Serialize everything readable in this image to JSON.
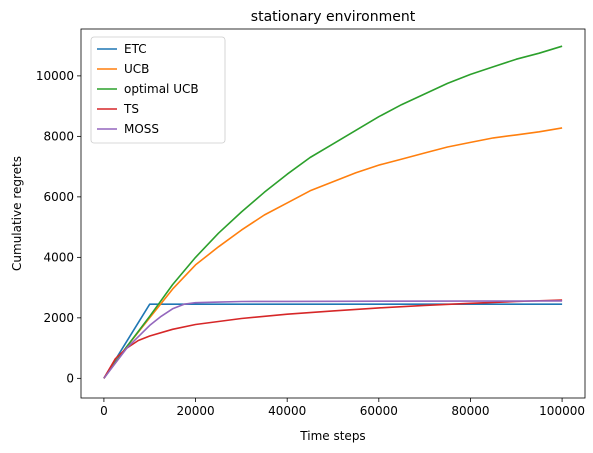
{
  "chart_data": {
    "type": "line",
    "title": "stationary environment",
    "xlabel": "Time steps",
    "ylabel": "Cumulative regrets",
    "xlim": [
      -5000,
      105000
    ],
    "ylim": [
      -650,
      11550
    ],
    "xticks": [
      0,
      20000,
      40000,
      60000,
      80000,
      100000
    ],
    "xtick_labels": [
      "0",
      "20000",
      "40000",
      "60000",
      "80000",
      "100000"
    ],
    "yticks": [
      0,
      2000,
      4000,
      6000,
      8000,
      10000
    ],
    "ytick_labels": [
      "0",
      "2000",
      "4000",
      "6000",
      "8000",
      "10000"
    ],
    "grid": false,
    "legend_position": "top-left",
    "series": [
      {
        "name": "ETC",
        "color": "#1f77b4",
        "x": [
          0,
          10000,
          20000,
          40000,
          60000,
          80000,
          100000
        ],
        "values": [
          0,
          2450,
          2450,
          2450,
          2450,
          2450,
          2450
        ]
      },
      {
        "name": "UCB",
        "color": "#ff7f0e",
        "x": [
          0,
          5000,
          10000,
          15000,
          20000,
          25000,
          30000,
          35000,
          40000,
          45000,
          50000,
          55000,
          60000,
          65000,
          70000,
          75000,
          80000,
          85000,
          90000,
          95000,
          100000
        ],
        "values": [
          0,
          1050,
          2000,
          2950,
          3750,
          4350,
          4900,
          5400,
          5800,
          6200,
          6500,
          6800,
          7050,
          7250,
          7450,
          7650,
          7800,
          7950,
          8050,
          8150,
          8280
        ]
      },
      {
        "name": "optimal UCB",
        "color": "#2ca02c",
        "x": [
          0,
          5000,
          10000,
          15000,
          20000,
          25000,
          30000,
          35000,
          40000,
          45000,
          50000,
          55000,
          60000,
          65000,
          70000,
          75000,
          80000,
          85000,
          90000,
          95000,
          100000
        ],
        "values": [
          0,
          1050,
          2050,
          3100,
          4000,
          4800,
          5500,
          6150,
          6750,
          7300,
          7750,
          8200,
          8650,
          9050,
          9400,
          9750,
          10050,
          10300,
          10550,
          10750,
          10980
        ]
      },
      {
        "name": "TS",
        "color": "#d62728",
        "x": [
          0,
          2500,
          5000,
          7500,
          10000,
          15000,
          20000,
          30000,
          40000,
          50000,
          60000,
          70000,
          80000,
          90000,
          100000
        ],
        "values": [
          0,
          650,
          1000,
          1250,
          1400,
          1620,
          1780,
          1980,
          2120,
          2230,
          2330,
          2410,
          2480,
          2540,
          2590
        ]
      },
      {
        "name": "MOSS",
        "color": "#9467bd",
        "x": [
          0,
          5000,
          10000,
          12500,
          15000,
          17500,
          20000,
          25000,
          30000,
          40000,
          60000,
          80000,
          100000
        ],
        "values": [
          0,
          1000,
          1750,
          2050,
          2300,
          2450,
          2500,
          2520,
          2540,
          2545,
          2550,
          2555,
          2560
        ]
      }
    ]
  }
}
